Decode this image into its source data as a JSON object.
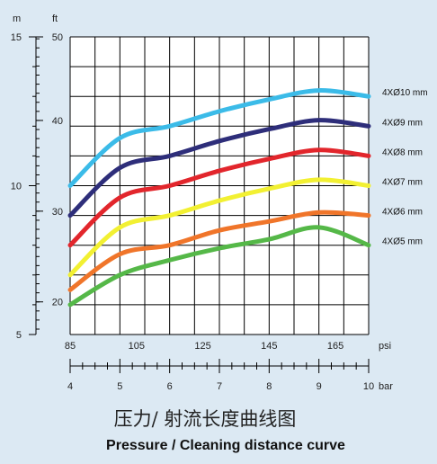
{
  "title_cn": "压力/  射流长度曲线图",
  "title_en": "Pressure / Cleaning distance curve",
  "chart_data": {
    "type": "line",
    "x_psi": {
      "label": "psi",
      "ticks": [
        85,
        105,
        125,
        145,
        165
      ],
      "range": [
        85,
        175
      ]
    },
    "x_bar": {
      "label": "bar",
      "ticks": [
        4,
        5,
        6,
        7,
        8,
        9,
        10
      ],
      "range": [
        4,
        10
      ]
    },
    "y_m": {
      "label": "m",
      "ticks": [
        5,
        10,
        15
      ],
      "range": [
        5,
        15
      ]
    },
    "y_ft": {
      "label": "ft",
      "ticks": [
        20,
        30,
        40,
        50
      ]
    },
    "grid": true,
    "series": [
      {
        "name": "4XØ10 mm",
        "color": "#3bbbe8",
        "x": [
          4,
          5,
          6,
          7,
          8,
          9,
          10
        ],
        "y": [
          10.0,
          11.6,
          12.0,
          12.5,
          12.9,
          13.2,
          13.0
        ]
      },
      {
        "name": "4XØ9 mm",
        "color": "#2e2e7a",
        "x": [
          4,
          5,
          6,
          7,
          8,
          9,
          10
        ],
        "y": [
          9.0,
          10.6,
          11.0,
          11.5,
          11.9,
          12.2,
          12.0
        ]
      },
      {
        "name": "4XØ8 mm",
        "color": "#e2262c",
        "x": [
          4,
          5,
          6,
          7,
          8,
          9,
          10
        ],
        "y": [
          8.0,
          9.6,
          10.0,
          10.5,
          10.9,
          11.2,
          11.0
        ]
      },
      {
        "name": "4XØ7 mm",
        "color": "#f2f032",
        "x": [
          4,
          5,
          6,
          7,
          8,
          9,
          10
        ],
        "y": [
          7.0,
          8.6,
          9.0,
          9.5,
          9.9,
          10.2,
          10.0
        ]
      },
      {
        "name": "4XØ6 mm",
        "color": "#f0752a",
        "x": [
          4,
          5,
          6,
          7,
          8,
          9,
          10
        ],
        "y": [
          6.5,
          7.7,
          8.0,
          8.5,
          8.8,
          9.1,
          9.0
        ]
      },
      {
        "name": "4XØ5 mm",
        "color": "#55b848",
        "x": [
          4,
          5,
          6,
          7,
          8,
          9,
          10
        ],
        "y": [
          6.0,
          7.0,
          7.5,
          7.9,
          8.2,
          8.6,
          8.0
        ]
      }
    ]
  }
}
